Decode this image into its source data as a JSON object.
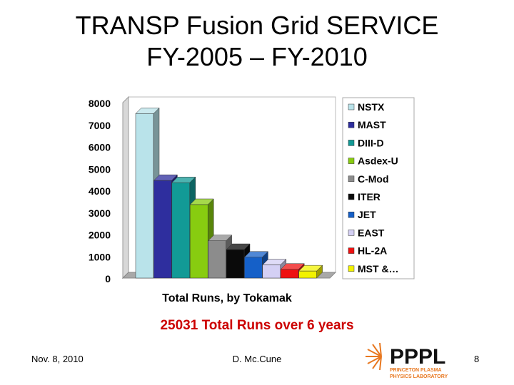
{
  "slide": {
    "title_line1": "TRANSP Fusion Grid SERVICE",
    "title_line2": "FY-2005 – FY-2010",
    "summary": "25031 Total Runs over 6 years",
    "footer_date": "Nov. 8, 2010",
    "footer_author": "D. Mc.Cune",
    "page_number": "8",
    "logo_text": "PPPL",
    "logo_subtext_1": "PRINCETON PLASMA",
    "logo_subtext_2": "PHYSICS LABORATORY"
  },
  "chart_data": {
    "type": "bar",
    "title": "",
    "xlabel": "Total Runs, by Tokamak",
    "ylabel": "",
    "ylim": [
      0,
      8000
    ],
    "yticks": [
      0,
      1000,
      2000,
      3000,
      4000,
      5000,
      6000,
      7000,
      8000
    ],
    "legend_position": "right",
    "grid": false,
    "series": [
      {
        "name": "NSTX",
        "value": 7500,
        "color": "#b9e3ea"
      },
      {
        "name": "MAST",
        "value": 4450,
        "color": "#2e2e9e"
      },
      {
        "name": "DIII-D",
        "value": 4350,
        "color": "#129a96"
      },
      {
        "name": "Asdex-U",
        "value": 3350,
        "color": "#88cc10"
      },
      {
        "name": "C-Mod",
        "value": 1700,
        "color": "#8c8c8c"
      },
      {
        "name": "ITER",
        "value": 1300,
        "color": "#0a0a0a"
      },
      {
        "name": "JET",
        "value": 950,
        "color": "#1560c8"
      },
      {
        "name": "EAST",
        "value": 600,
        "color": "#d4d0f4"
      },
      {
        "name": "HL-2A",
        "value": 400,
        "color": "#ee1111"
      },
      {
        "name": "MST &…",
        "value": 320,
        "color": "#f2f200"
      }
    ]
  }
}
